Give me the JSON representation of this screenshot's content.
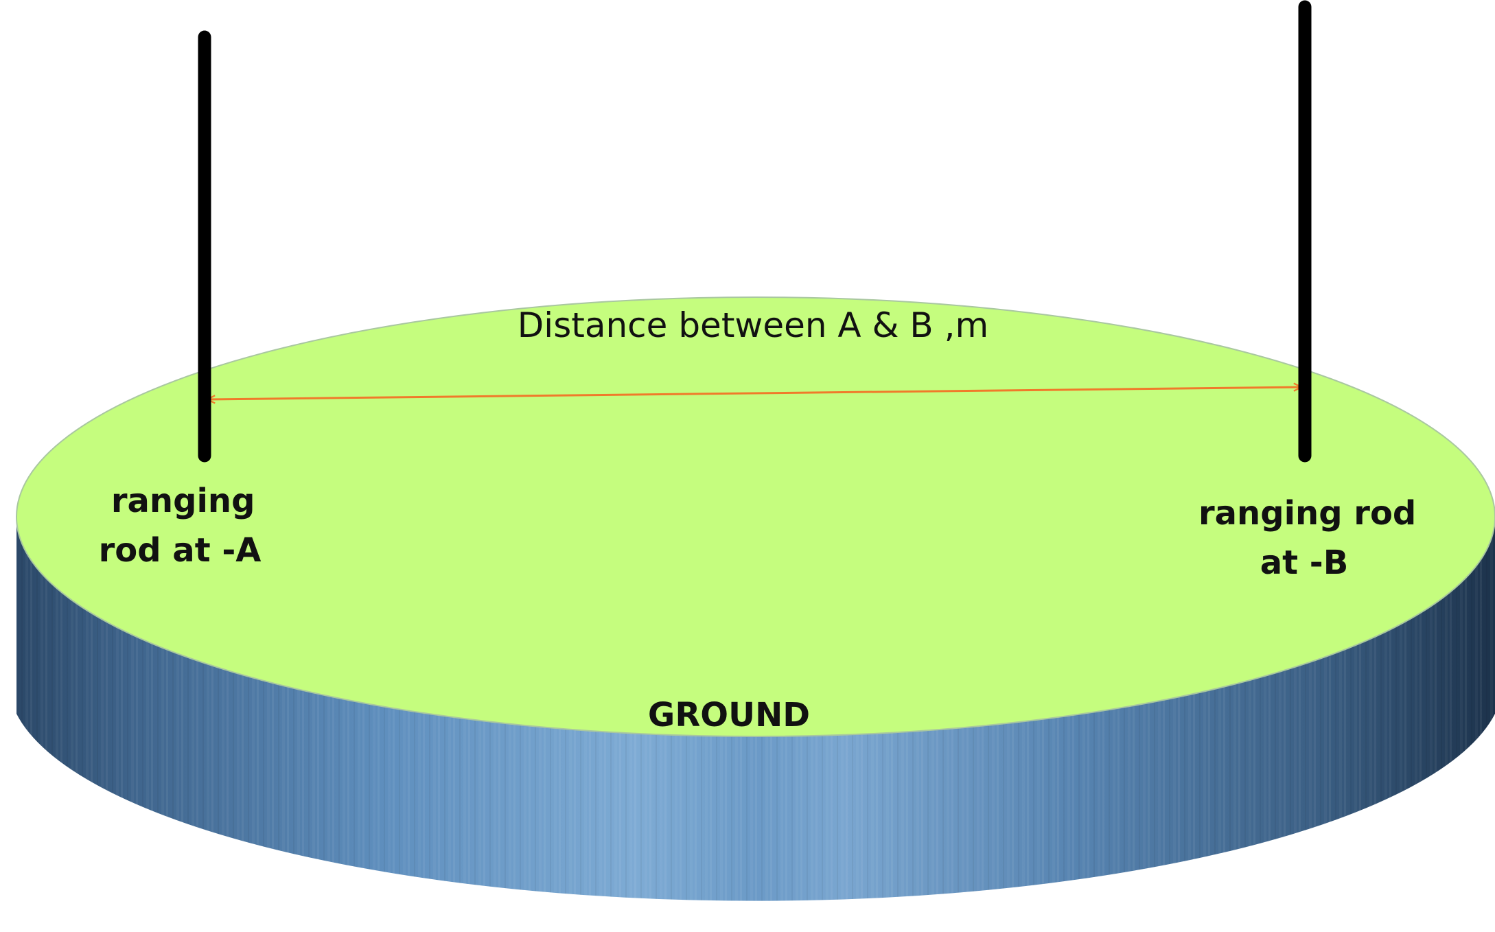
{
  "diagram": {
    "distance_label": "Distance between A & B ,m",
    "rod_a_label": [
      "ranging",
      "rod  at -A"
    ],
    "rod_b_label": [
      "ranging rod",
      "at -B"
    ],
    "ground_label": "GROUND"
  },
  "colors": {
    "ground_top": "#c5fd7e",
    "ground_side_light": "#7ea9d2",
    "ground_side_dark": "#1f3650",
    "rod": "#000000",
    "distance_arrow": "#f07a2a",
    "text": "#111111"
  }
}
